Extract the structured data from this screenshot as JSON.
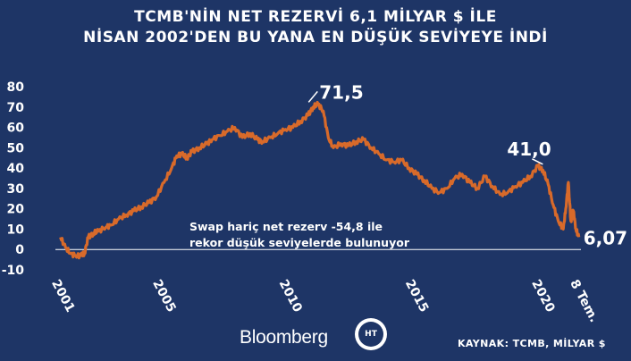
{
  "chart_data": {
    "type": "line",
    "title_lines": [
      "TCMB'NİN NET REZERVİ 6,1 MİLYAR $ İLE",
      "NİSAN 2002'DEN BU YANA EN DÜŞÜK SEVİYEYE İNDİ"
    ],
    "xlabel": "",
    "ylabel": "",
    "ylim": [
      -10,
      80
    ],
    "yticks": [
      -10,
      0,
      10,
      20,
      30,
      40,
      50,
      60,
      70,
      80
    ],
    "xlim": [
      2000.8,
      2021.6
    ],
    "xticks": [
      {
        "value": 2001,
        "label": "2001"
      },
      {
        "value": 2005,
        "label": "2005"
      },
      {
        "value": 2010,
        "label": "2010"
      },
      {
        "value": 2015,
        "label": "2015"
      },
      {
        "value": 2020,
        "label": "2020"
      },
      {
        "value": 2021.52,
        "label": "8 Tem."
      }
    ],
    "grid": false,
    "line_color": "#d86a2a",
    "series": [
      {
        "x": [
          2001.0,
          2001.2,
          2001.4,
          2001.6,
          2001.8,
          2001.95,
          2002.1,
          2002.3,
          2002.5,
          2002.8,
          2003.0,
          2003.3,
          2003.6,
          2003.9,
          2004.2,
          2004.5,
          2004.8,
          2005.1,
          2005.4,
          2005.6,
          2005.8,
          2006.0,
          2006.2,
          2006.5,
          2006.8,
          2007.0,
          2007.3,
          2007.6,
          2007.9,
          2008.2,
          2008.5,
          2008.8,
          2009.0,
          2009.3,
          2009.6,
          2009.9,
          2010.2,
          2010.5,
          2010.8,
          2011.0,
          2011.2,
          2011.4,
          2011.6,
          2011.8,
          2012.1,
          2012.4,
          2012.7,
          2013.0,
          2013.3,
          2013.6,
          2013.9,
          2014.2,
          2014.5,
          2014.8,
          2015.1,
          2015.4,
          2015.7,
          2016.0,
          2016.3,
          2016.6,
          2016.9,
          2017.2,
          2017.5,
          2017.8,
          2018.1,
          2018.4,
          2018.7,
          2019.0,
          2019.3,
          2019.6,
          2019.9,
          2020.1,
          2020.3,
          2020.5,
          2020.7,
          2020.9,
          2021.0,
          2021.1,
          2021.2,
          2021.3,
          2021.4,
          2021.52
        ],
        "values": [
          6,
          1,
          -2,
          -3,
          -3,
          -2,
          6,
          8,
          9,
          11,
          12,
          15,
          17,
          19,
          21,
          23,
          26,
          33,
          40,
          46,
          47,
          45,
          48,
          50,
          52,
          54,
          56,
          58,
          60,
          55,
          57,
          54,
          53,
          55,
          57,
          59,
          60,
          63,
          66,
          70,
          71.5,
          68,
          55,
          50,
          52,
          51,
          53,
          54,
          50,
          47,
          44,
          43,
          44,
          40,
          37,
          34,
          30,
          28,
          30,
          35,
          37,
          33,
          30,
          36,
          31,
          27,
          28,
          31,
          33,
          36,
          41.0,
          39,
          32,
          22,
          14,
          10,
          20,
          33,
          14,
          19,
          10,
          6.07
        ]
      }
    ],
    "annotations": [
      {
        "label": "71,5",
        "x": 2010.75,
        "y": 71.5,
        "anchor": "top-right"
      },
      {
        "label": "41,0",
        "x": 2019.95,
        "y": 41.0,
        "anchor": "top"
      },
      {
        "label": "6,07",
        "x": 2021.52,
        "y": 6.07,
        "anchor": "right"
      }
    ],
    "note_lines": [
      "Swap hariç net rezerv -54,8 ile",
      "rekor düşük seviyelerde bulunuyor"
    ]
  },
  "footer": {
    "brand": "Bloomberg",
    "badge_text": "HT",
    "source": "KAYNAK: TCMB, MİLYAR $"
  },
  "colors": {
    "background": "#1e3566",
    "text": "#ffffff",
    "line": "#d86a2a"
  }
}
